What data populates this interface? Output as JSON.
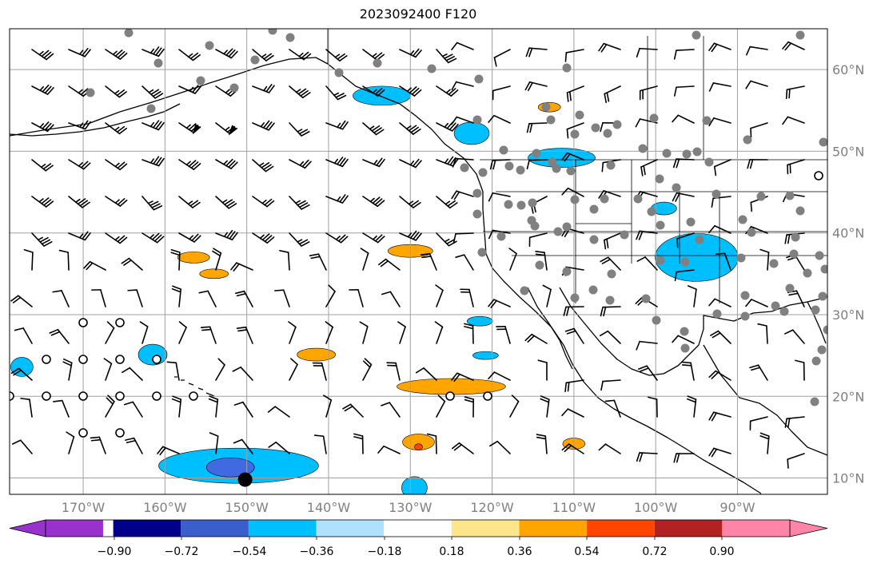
{
  "title": "2023092400 F120",
  "map": {
    "projection": "plate-carree",
    "lon_range": [
      -179,
      -79
    ],
    "lat_range": [
      8,
      65
    ],
    "gridlines": true,
    "x_ticks": [
      {
        "lon": -170,
        "label": "170°W"
      },
      {
        "lon": -160,
        "label": "160°W"
      },
      {
        "lon": -150,
        "label": "150°W"
      },
      {
        "lon": -140,
        "label": "140°W"
      },
      {
        "lon": -130,
        "label": "130°W"
      },
      {
        "lon": -120,
        "label": "120°W"
      },
      {
        "lon": -110,
        "label": "110°W"
      },
      {
        "lon": -100,
        "label": "100°W"
      },
      {
        "lon": -90,
        "label": "90°W"
      }
    ],
    "y_ticks": [
      {
        "lat": 60,
        "label": "60°N"
      },
      {
        "lat": 50,
        "label": "50°N"
      },
      {
        "lat": 40,
        "label": "40°N"
      },
      {
        "lat": 30,
        "label": "30°N"
      },
      {
        "lat": 20,
        "label": "20°N"
      },
      {
        "lat": 10,
        "label": "10°N"
      }
    ],
    "contour_fill_regions": [
      {
        "color": "#00bfff",
        "area": "Gulf of Alaska coast",
        "lon": -133.5,
        "lat": 56.8
      },
      {
        "color": "#00bfff",
        "area": "British Columbia interior",
        "lon": -122.5,
        "lat": 52.2
      },
      {
        "color": "#00bfff",
        "area": "Montana / Idaho",
        "lon": -111.5,
        "lat": 49.2
      },
      {
        "color": "#00bfff",
        "area": "Nebraska",
        "lon": -99.0,
        "lat": 43.0
      },
      {
        "color": "#00bfff",
        "area": "Kansas / Oklahoma",
        "lon": -95.0,
        "lat": 37.0
      },
      {
        "color": "#00bfff",
        "area": "Gulf of California",
        "lon": -121.5,
        "lat": 29.2
      },
      {
        "color": "#00bfff",
        "area": "offshore Baja",
        "lon": -120.8,
        "lat": 25.0
      },
      {
        "color": "#00bfff",
        "area": "north of Hawaii",
        "lon": -161.5,
        "lat": 25.1
      },
      {
        "color": "#00bfff",
        "area": "west edge",
        "lon": -177.5,
        "lat": 23.6
      },
      {
        "color": "#00bfff",
        "area": "south of Hawaii",
        "lon": -151.0,
        "lat": 11.5
      },
      {
        "color": "#00bfff",
        "area": "eastern Pacific",
        "lon": -129.5,
        "lat": 8.8
      },
      {
        "color": "#4169e1",
        "area": "south of Hawaii core",
        "lon": -152.0,
        "lat": 11.3
      },
      {
        "color": "#ffa500",
        "area": "Alaska Panhandle inland",
        "lon": -113.0,
        "lat": 55.4
      },
      {
        "color": "#ffa500",
        "area": "central Pacific",
        "lon": -156.5,
        "lat": 37.0
      },
      {
        "color": "#ffa500",
        "area": "central Pacific",
        "lon": -154.0,
        "lat": 35.0
      },
      {
        "color": "#ffa500",
        "area": "offshore California",
        "lon": -130.0,
        "lat": 37.8
      },
      {
        "color": "#ffa500",
        "area": "east Pacific",
        "lon": -141.5,
        "lat": 25.1
      },
      {
        "color": "#ffa500",
        "area": "east Pacific",
        "lon": -125.0,
        "lat": 21.2
      },
      {
        "color": "#ffa500",
        "area": "east Pacific",
        "lon": -129.0,
        "lat": 14.4
      },
      {
        "color": "#ffa500",
        "area": "east Pacific",
        "lon": -110.0,
        "lat": 14.2
      },
      {
        "color": "#ff4500",
        "area": "east Pacific core",
        "lon": -129.0,
        "lat": 13.8
      }
    ],
    "markers": [
      {
        "type": "large-dot",
        "lon": -150.2,
        "lat": 9.8
      }
    ]
  },
  "colorbar": {
    "colors": [
      "#9932cc",
      "#00008b",
      "#3a5fcd",
      "#00bfff",
      "#b0e0ff",
      "#ffffff",
      "#fde58c",
      "#ffa500",
      "#ff4500",
      "#b22222",
      "#ff85a8",
      "#ff85a8"
    ],
    "labels": [
      "−0.90",
      "−0.72",
      "−0.54",
      "−0.36",
      "−0.18",
      "0.18",
      "0.36",
      "0.54",
      "0.72",
      "0.90"
    ],
    "extend": "both"
  }
}
